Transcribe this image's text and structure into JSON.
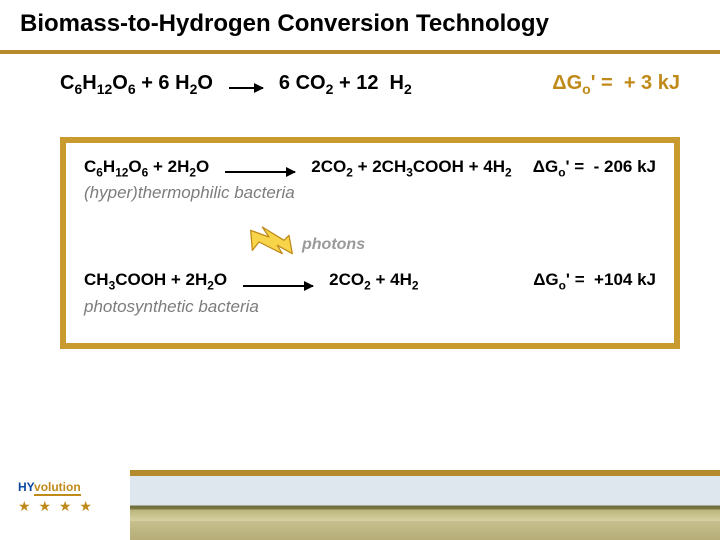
{
  "colors": {
    "accent": "#c08a1a",
    "frame_border": "#c99a2e",
    "title_underline": "#b48a2c",
    "desc_text": "#7c7c7c",
    "photons_text": "#9a9a9a",
    "bolt_fill": "#f7d44a",
    "bolt_stroke": "#c08a1a",
    "logo_blue": "#0a4aa0"
  },
  "title": "Biomass-to-Hydrogen Conversion Technology",
  "top_equation": {
    "lhs": "C6H12O6 + 6 H2O",
    "rhs": "6 CO2 + 12  H2",
    "dg": "ΔGo' =  + 3 kJ",
    "arrow_width": 34
  },
  "frame": {
    "eq1": {
      "lhs": "C6H12O6 + 2H2O",
      "rhs": "2CO2 + 2CH3COOH + 4H2",
      "dg": "ΔGo' =  - 206 kJ",
      "arrow_width": 70,
      "desc": "(hyper)thermophilic bacteria"
    },
    "photons_label": "photons",
    "bolt": {
      "width": 50,
      "height": 34
    },
    "eq2": {
      "lhs": "CH3COOH + 2H2O",
      "rhs": "2CO2 + 4H2",
      "dg": "ΔGo' =  +104 kJ",
      "arrow_width": 70,
      "desc": "photosynthetic bacteria"
    }
  },
  "logo": {
    "hy": "HY",
    "rest": "volution",
    "stars": "★ ★ ★ ★"
  }
}
